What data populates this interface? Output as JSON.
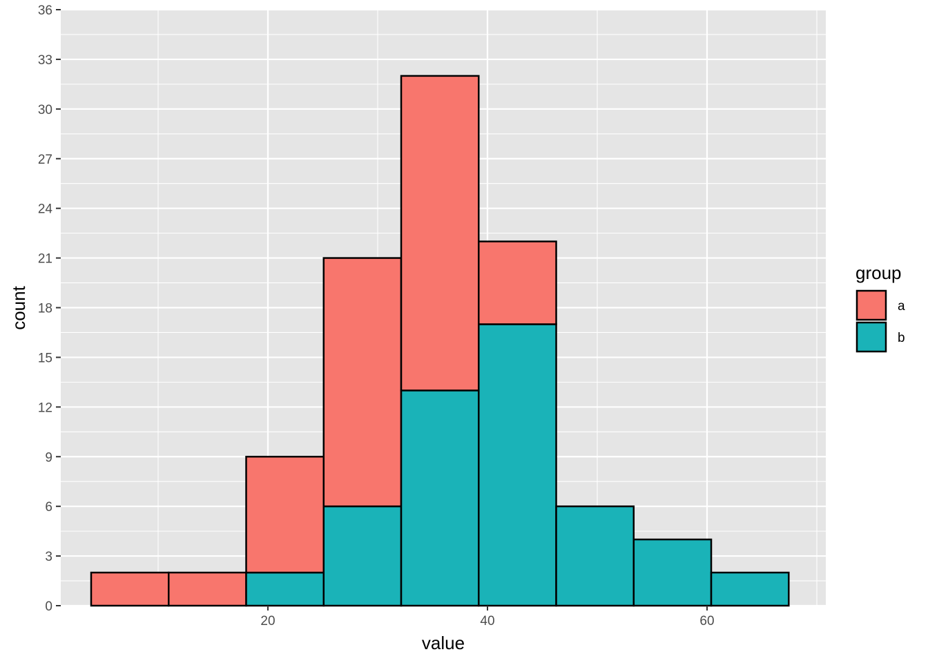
{
  "chart_data": {
    "type": "bar",
    "subtype": "stacked-histogram",
    "title": "",
    "xlabel": "value",
    "ylabel": "count",
    "xlim": [
      0,
      70
    ],
    "ylim": [
      0,
      36
    ],
    "x_ticks": [
      20,
      40,
      60
    ],
    "y_ticks": [
      0,
      3,
      6,
      9,
      12,
      15,
      18,
      21,
      24,
      27,
      30,
      33,
      36
    ],
    "grid": true,
    "bin_width": 7.06,
    "bins": [
      {
        "x_min": 3.9,
        "x_max": 10.96
      },
      {
        "x_min": 10.96,
        "x_max": 18.02
      },
      {
        "x_min": 18.02,
        "x_max": 25.08
      },
      {
        "x_min": 25.08,
        "x_max": 32.14
      },
      {
        "x_min": 32.14,
        "x_max": 39.2
      },
      {
        "x_min": 39.2,
        "x_max": 46.26
      },
      {
        "x_min": 46.26,
        "x_max": 53.32
      },
      {
        "x_min": 53.32,
        "x_max": 60.38
      },
      {
        "x_min": 60.38,
        "x_max": 67.44
      }
    ],
    "series": [
      {
        "name": "a",
        "color": "#F8766D",
        "values": [
          2,
          2,
          7,
          15,
          19,
          5,
          0,
          0,
          0
        ]
      },
      {
        "name": "b",
        "color": "#00BFC4",
        "values": [
          0,
          0,
          2,
          6,
          13,
          17,
          6,
          4,
          2
        ]
      }
    ],
    "legend": {
      "title": "group",
      "position": "right"
    }
  },
  "colors": {
    "panel_background": "#e5e5e5",
    "grid_major": "#ffffff",
    "bar_outline": "#000000",
    "fill_a": "#F8766D",
    "fill_b": "#1ab3b8"
  }
}
